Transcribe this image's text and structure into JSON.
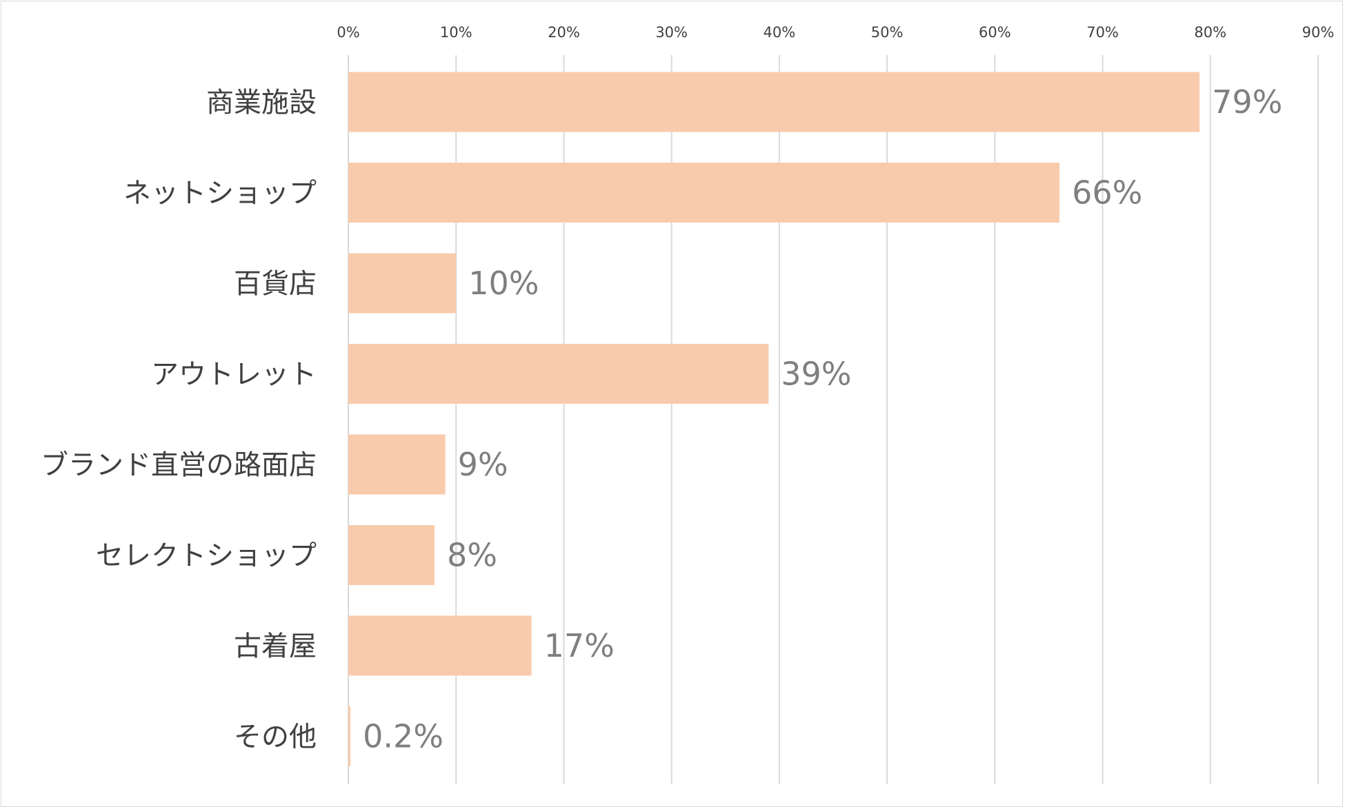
{
  "chart_data": {
    "type": "bar",
    "orientation": "horizontal",
    "categories": [
      "商業施設",
      "ネットショップ",
      "百貨店",
      "アウトレット",
      "ブランド直営の路面店",
      "セレクトショップ",
      "古着屋",
      "その他"
    ],
    "values": [
      79,
      66,
      10,
      39,
      9,
      8,
      17,
      0.2
    ],
    "data_labels": [
      "79%",
      "66%",
      "10%",
      "39%",
      "9%",
      "8%",
      "17%",
      "0.2%"
    ],
    "xlim": [
      0,
      90
    ],
    "x_ticks": [
      0,
      10,
      20,
      30,
      40,
      50,
      60,
      70,
      80,
      90
    ],
    "x_tick_labels": [
      "0%",
      "10%",
      "20%",
      "30%",
      "40%",
      "50%",
      "60%",
      "70%",
      "80%",
      "90%"
    ],
    "x_axis_position": "top",
    "title": "",
    "xlabel": "",
    "ylabel": "",
    "grid": true,
    "legend": "none",
    "bar_color": "#f8cbad",
    "grid_color": "#d9d9d9",
    "label_color": "#404040",
    "data_label_color": "#7f7f7f"
  }
}
